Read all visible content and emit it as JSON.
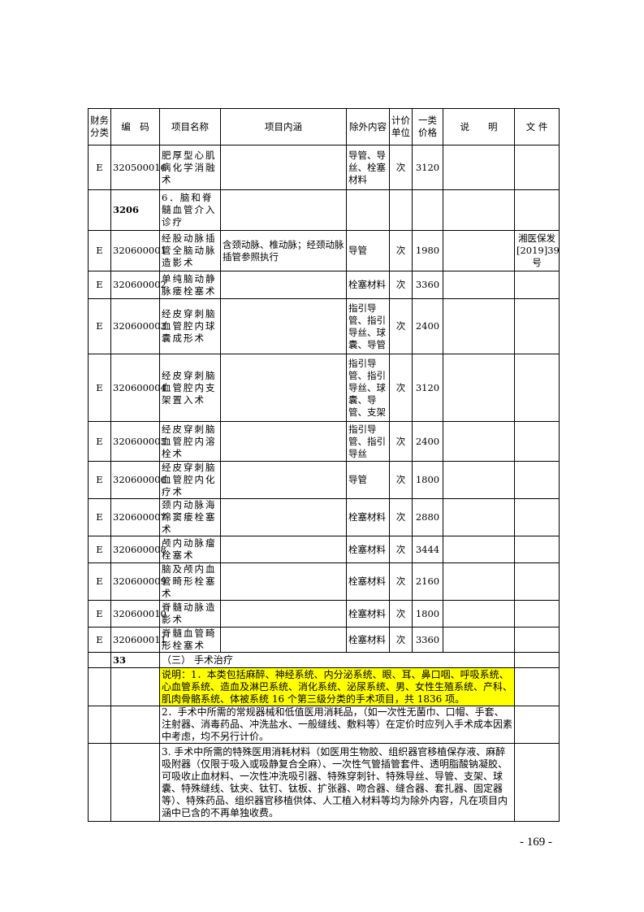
{
  "headers": [
    "财务分类",
    "编　码",
    "项目名称",
    "项目内涵",
    "除外内容",
    "计价单位",
    "一类价格",
    "说　　明",
    "文 件"
  ],
  "rows": [
    {
      "cat": "E",
      "code": "320500016",
      "name": "肥厚型心肌病化学消融术",
      "content": "",
      "excl": "导管、导丝、栓塞材料",
      "unit": "次",
      "price": "3120",
      "note": "",
      "file": ""
    },
    {
      "cat": "",
      "code": "3206",
      "name": "6．脑和脊髓血管介入诊疗",
      "content": "",
      "excl": "",
      "unit": "",
      "price": "",
      "note": "",
      "file": "",
      "bold": true
    },
    {
      "cat": "E",
      "code": "320600001",
      "name": "经股动脉插管全脑动脉造影术",
      "content": "含颈动脉、椎动脉；经颈动脉插管参照执行",
      "excl": "导管",
      "unit": "次",
      "price": "1980",
      "note": "",
      "file": "湘医保发[2019]39号"
    },
    {
      "cat": "E",
      "code": "320600002",
      "name": "单纯脑动静脉瘘栓塞术",
      "content": "",
      "excl": "栓塞材料",
      "unit": "次",
      "price": "3360",
      "note": "",
      "file": ""
    },
    {
      "cat": "E",
      "code": "320600003",
      "name": "经皮穿刺脑血管腔内球囊成形术",
      "content": "",
      "excl": "指引导管、指引导丝、球囊、导管",
      "unit": "次",
      "price": "2400",
      "note": "",
      "file": ""
    },
    {
      "cat": "E",
      "code": "320600004",
      "name": "经皮穿刺脑血管腔内支架置入术",
      "content": "",
      "excl": "指引导管、指引导丝、球囊、导管、支架",
      "unit": "次",
      "price": "3120",
      "note": "",
      "file": ""
    },
    {
      "cat": "E",
      "code": "320600005",
      "name": "经皮穿刺脑血管腔内溶栓术",
      "content": "",
      "excl": "指引导管、指引导丝",
      "unit": "次",
      "price": "2400",
      "note": "",
      "file": ""
    },
    {
      "cat": "E",
      "code": "320600006",
      "name": "经皮穿刺脑血管腔内化疗术",
      "content": "",
      "excl": "导管",
      "unit": "次",
      "price": "1800",
      "note": "",
      "file": ""
    },
    {
      "cat": "E",
      "code": "320600007",
      "name": "颈内动脉海绵窦瘘栓塞术",
      "content": "",
      "excl": "栓塞材料",
      "unit": "次",
      "price": "2880",
      "note": "",
      "file": ""
    },
    {
      "cat": "E",
      "code": "320600008",
      "name": "颅内动脉瘤栓塞术",
      "content": "",
      "excl": "栓塞材料",
      "unit": "次",
      "price": "3444",
      "note": "",
      "file": ""
    },
    {
      "cat": "E",
      "code": "320600009",
      "name": "脑及颅内血管畸形栓塞术",
      "content": "",
      "excl": "栓塞材料",
      "unit": "次",
      "price": "2160",
      "note": "",
      "file": ""
    },
    {
      "cat": "E",
      "code": "320600010",
      "name": "脊髓动脉造影术",
      "content": "",
      "excl": "栓塞材料",
      "unit": "次",
      "price": "1800",
      "note": "",
      "file": ""
    },
    {
      "cat": "E",
      "code": "320600011",
      "name": "脊髓血管畸形栓塞术",
      "content": "",
      "excl": "栓塞材料",
      "unit": "次",
      "price": "3360",
      "note": "",
      "file": ""
    }
  ],
  "section": {
    "code": "33",
    "title": "（三）  手术治疗"
  },
  "notes": [
    "说明：1．本类包括麻醉、神经系统、内分泌系统、眼、耳、鼻口咽、呼吸系统、心血管系统、造血及淋巴系统、消化系统、泌尿系统、男、女性生殖系统、产科、肌肉骨骼系统、体被系统 16 个第三级分类的手术项目，共 1836 项。",
    "2．手术中所需的常规器械和低值医用消耗品，（如一次性无菌巾、口帽、手套、注射器、消毒药品、冲洗盐水、一般缝线、敷料等）在定价时应列入手术成本因素中考虑，均不另行计价。",
    "3. 手术中所需的特殊医用消耗材料（如医用生物胶、组织器官移植保存液、麻醉吸附器（仅限于吸入或吸静复合全麻）、一次性气管插管套件、透明脂酸钠凝胶、可吸收止血材料、一次性冲洗吸引器、特殊穿刺针、特殊导丝、导管、支架、球囊、特殊缝线、钛夹、钛钉、钛板、扩张器、吻合器、缝合器、套扎器、固定器等）、特殊药品、组织器官移植供体、人工植入材料等均为除外内容，凡在项目内涵中已含的不再单独收费。"
  ],
  "highlight_color": "#ffff00",
  "page_number": "- 169 -"
}
